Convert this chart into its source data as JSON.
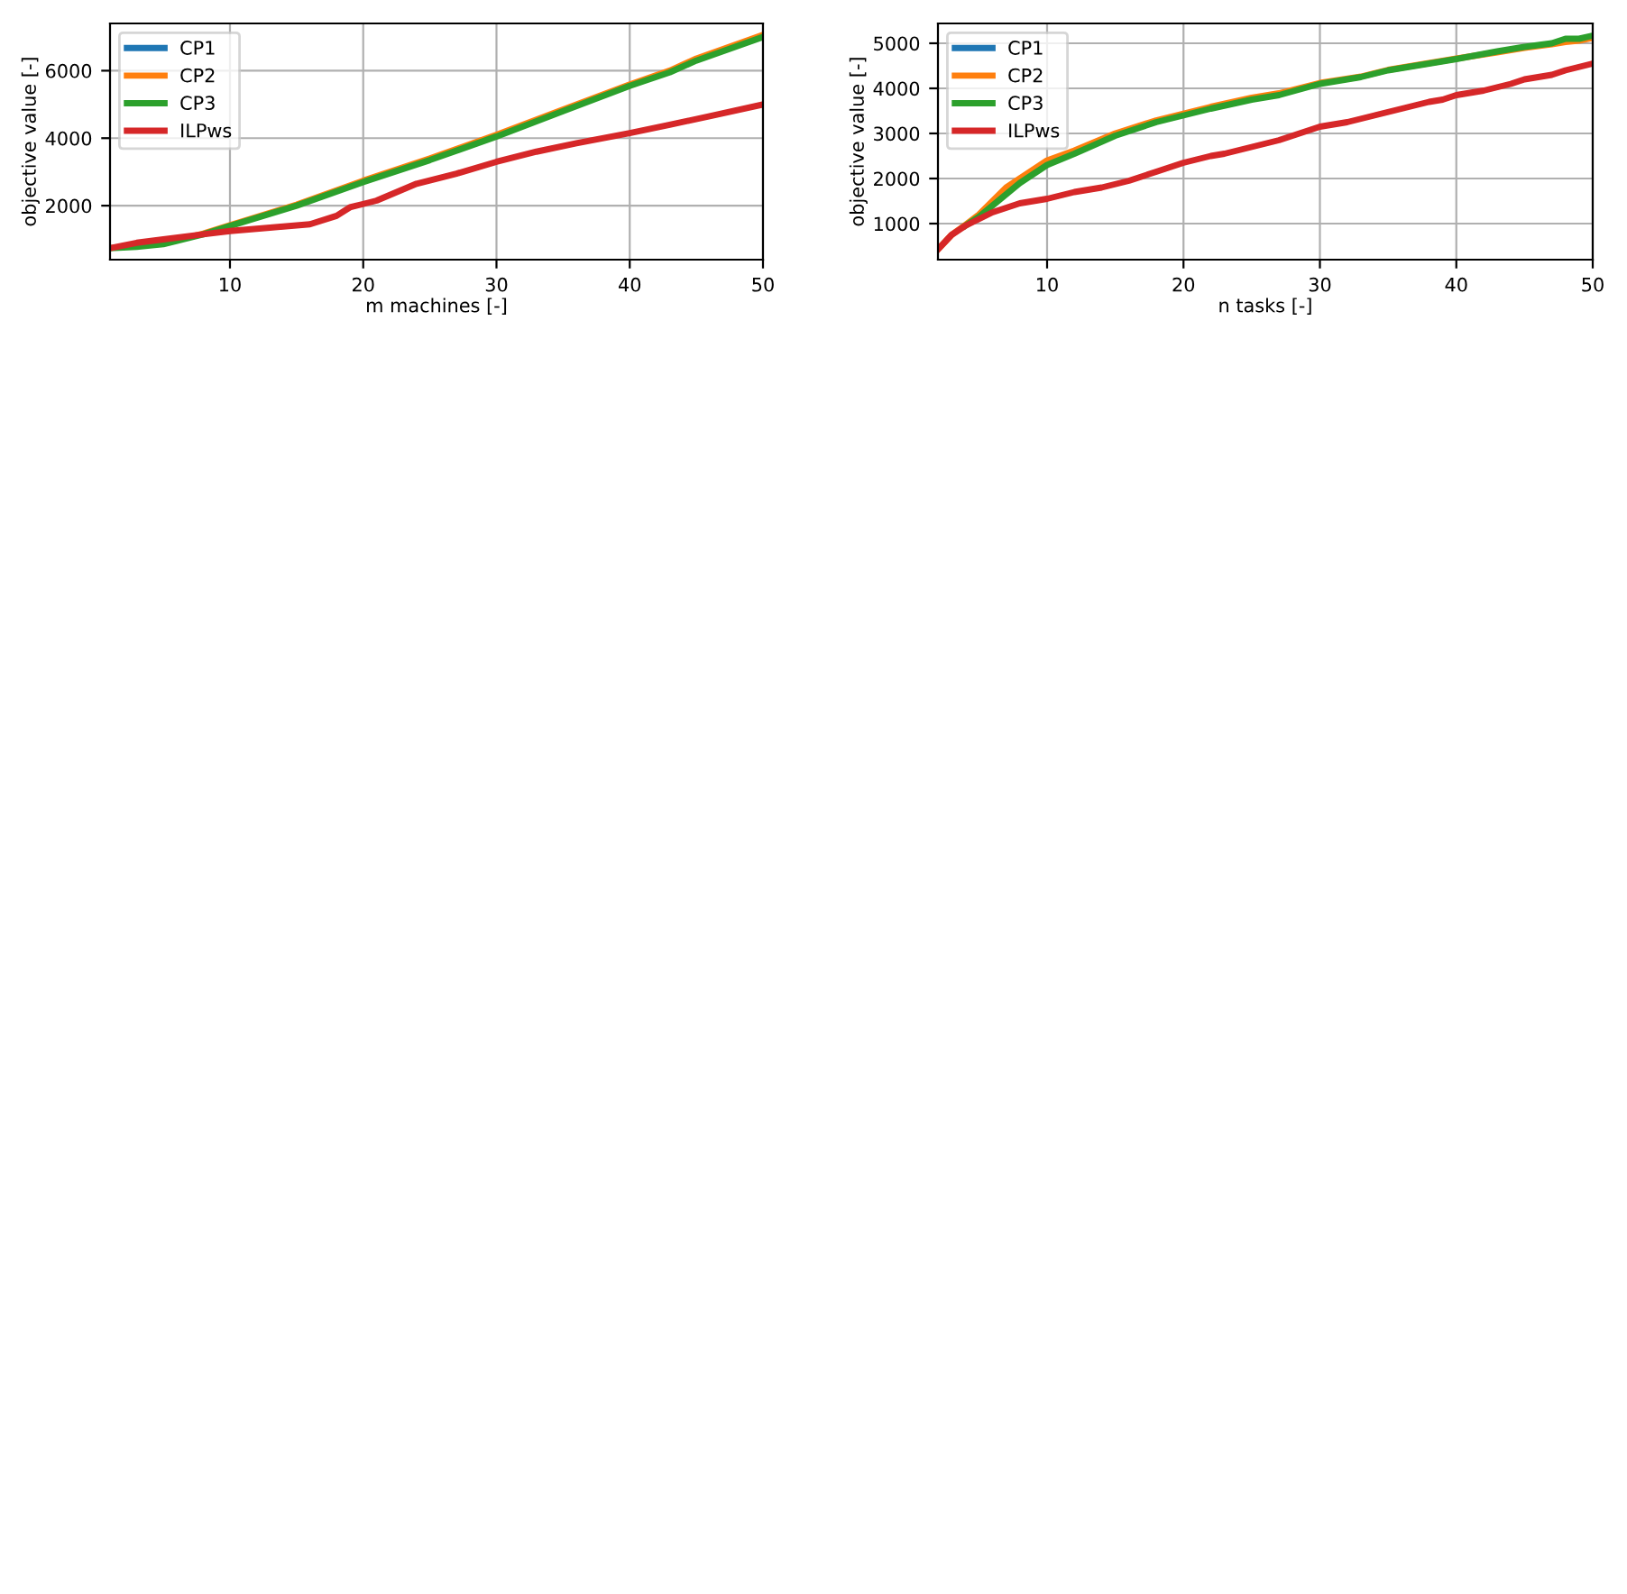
{
  "chart_data": [
    {
      "type": "line",
      "xlabel": "m machines [-]",
      "ylabel": "objective value [-]",
      "xlim": [
        1,
        50
      ],
      "ylim": [
        400,
        7400
      ],
      "xticks": [
        10,
        20,
        30,
        40,
        50
      ],
      "yticks": [
        2000,
        4000,
        6000
      ],
      "grid": true,
      "legend": "top left",
      "line_style": "solid",
      "marker": "none",
      "series": [
        {
          "name": "CP1",
          "color": "#1f77b4"
        },
        {
          "name": "CP2",
          "color": "#ff7f0e",
          "x": [
            5,
            8,
            10,
            15,
            20,
            25,
            30,
            35,
            40,
            43,
            45,
            50
          ],
          "values": [
            880,
            1170,
            1420,
            2030,
            2740,
            3400,
            4100,
            4850,
            5590,
            6000,
            6360,
            7060
          ]
        },
        {
          "name": "CP3",
          "color": "#2ca02c",
          "x": [
            1,
            3,
            5,
            8,
            10,
            15,
            20,
            25,
            30,
            35,
            40,
            43,
            45,
            50
          ],
          "values": [
            740,
            780,
            860,
            1150,
            1400,
            2000,
            2700,
            3350,
            4050,
            4800,
            5550,
            5950,
            6300,
            7000
          ]
        },
        {
          "name": "ILPws",
          "color": "#d62728",
          "x": [
            1,
            3,
            5,
            8,
            10,
            13,
            16,
            18,
            19,
            20,
            21,
            24,
            27,
            30,
            33,
            36,
            40,
            43,
            46,
            50
          ],
          "values": [
            740,
            900,
            1000,
            1150,
            1250,
            1350,
            1450,
            1700,
            1950,
            2050,
            2150,
            2650,
            2950,
            3300,
            3600,
            3850,
            4150,
            4400,
            4650,
            5000
          ]
        }
      ]
    },
    {
      "type": "line",
      "xlabel": "n tasks [-]",
      "ylabel": "objective value [-]",
      "xlim": [
        2,
        50
      ],
      "ylim": [
        200,
        5440
      ],
      "xticks": [
        10,
        20,
        30,
        40,
        50
      ],
      "yticks": [
        1000,
        2000,
        3000,
        4000,
        5000
      ],
      "grid": true,
      "legend": "top left",
      "line_style": "solid",
      "marker": "none",
      "series": [
        {
          "name": "CP1",
          "color": "#1f77b4"
        },
        {
          "name": "CP2",
          "color": "#ff7f0e",
          "x": [
            2,
            3,
            4,
            5,
            6,
            7,
            8,
            10,
            12,
            15,
            18,
            20,
            22,
            25,
            27,
            30,
            33,
            35,
            38,
            40,
            43,
            45,
            47,
            48,
            49,
            50
          ],
          "values": [
            430,
            750,
            970,
            1200,
            1500,
            1800,
            2000,
            2400,
            2620,
            3000,
            3290,
            3440,
            3590,
            3790,
            3890,
            4120,
            4260,
            4410,
            4560,
            4660,
            4800,
            4900,
            4980,
            5030,
            5060,
            5120
          ]
        },
        {
          "name": "CP3",
          "color": "#2ca02c",
          "x": [
            4,
            5,
            6,
            7,
            8,
            10,
            12,
            15,
            18,
            20,
            22,
            25,
            27,
            30,
            33,
            35,
            38,
            40,
            43,
            45,
            47,
            48,
            49,
            50
          ],
          "values": [
            950,
            1150,
            1400,
            1650,
            1900,
            2300,
            2550,
            2950,
            3250,
            3400,
            3550,
            3750,
            3850,
            4100,
            4250,
            4400,
            4550,
            4650,
            4820,
            4920,
            5000,
            5100,
            5100,
            5170
          ]
        },
        {
          "name": "ILPws",
          "color": "#d62728",
          "x": [
            2,
            3,
            4,
            5,
            6,
            7,
            8,
            10,
            12,
            14,
            16,
            18,
            20,
            22,
            23,
            25,
            27,
            30,
            32,
            34,
            36,
            38,
            39,
            40,
            42,
            44,
            45,
            47,
            48,
            50
          ],
          "values": [
            430,
            750,
            950,
            1100,
            1250,
            1350,
            1450,
            1550,
            1700,
            1800,
            1950,
            2150,
            2350,
            2500,
            2550,
            2700,
            2850,
            3150,
            3250,
            3400,
            3550,
            3700,
            3750,
            3850,
            3950,
            4100,
            4200,
            4300,
            4400,
            4550
          ]
        }
      ]
    }
  ]
}
